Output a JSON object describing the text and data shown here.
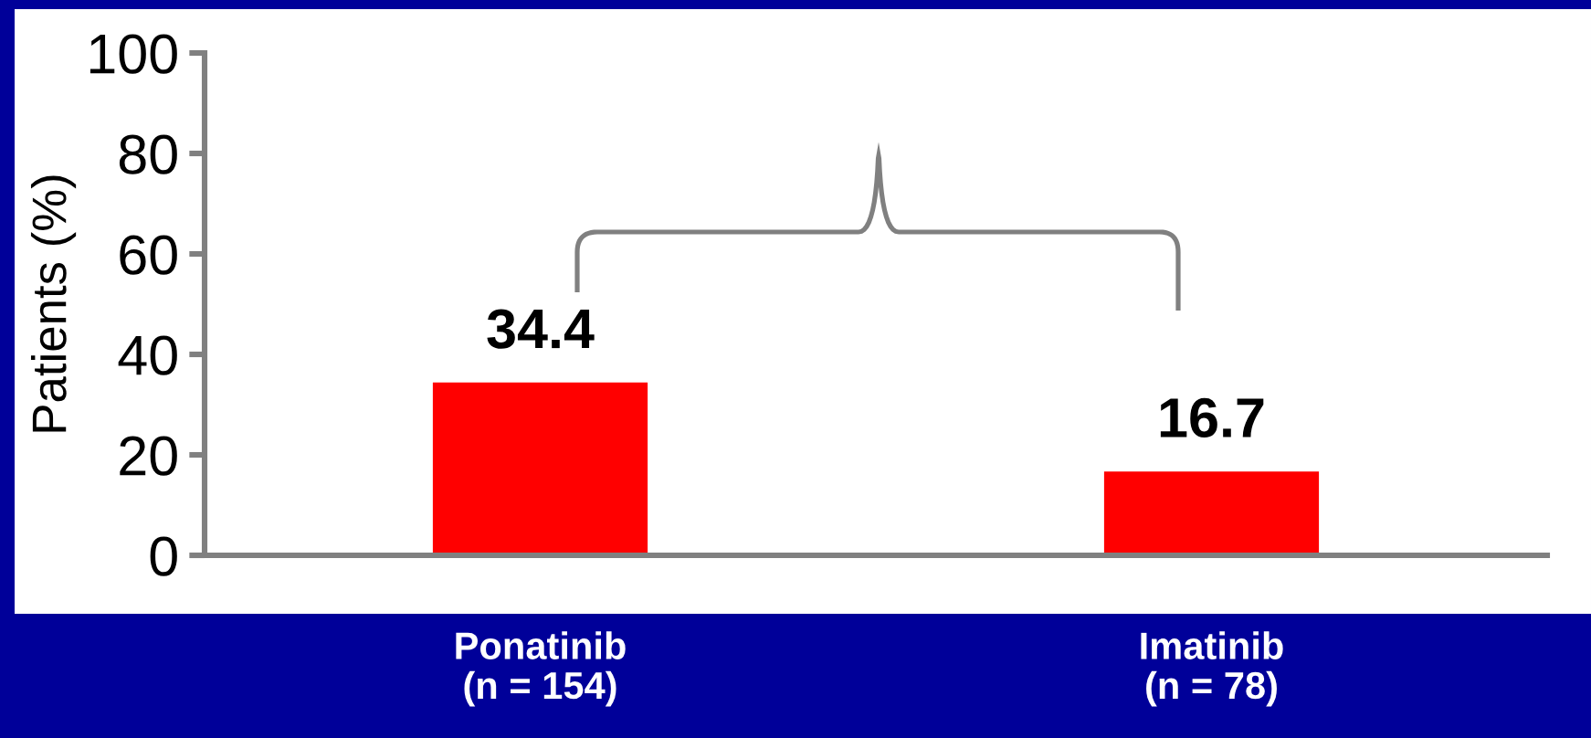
{
  "chart_data": {
    "type": "bar",
    "ylabel": "Patients (%)",
    "categories": [
      "Ponatinib\n(n = 154)",
      "Imatinib\n(n = 78)"
    ],
    "values": [
      34.4,
      16.7
    ],
    "color": "#ff0000",
    "ylim": [
      0,
      100
    ],
    "yticks": [
      0,
      20,
      40,
      60,
      80,
      100
    ],
    "data_labels": true
  }
}
